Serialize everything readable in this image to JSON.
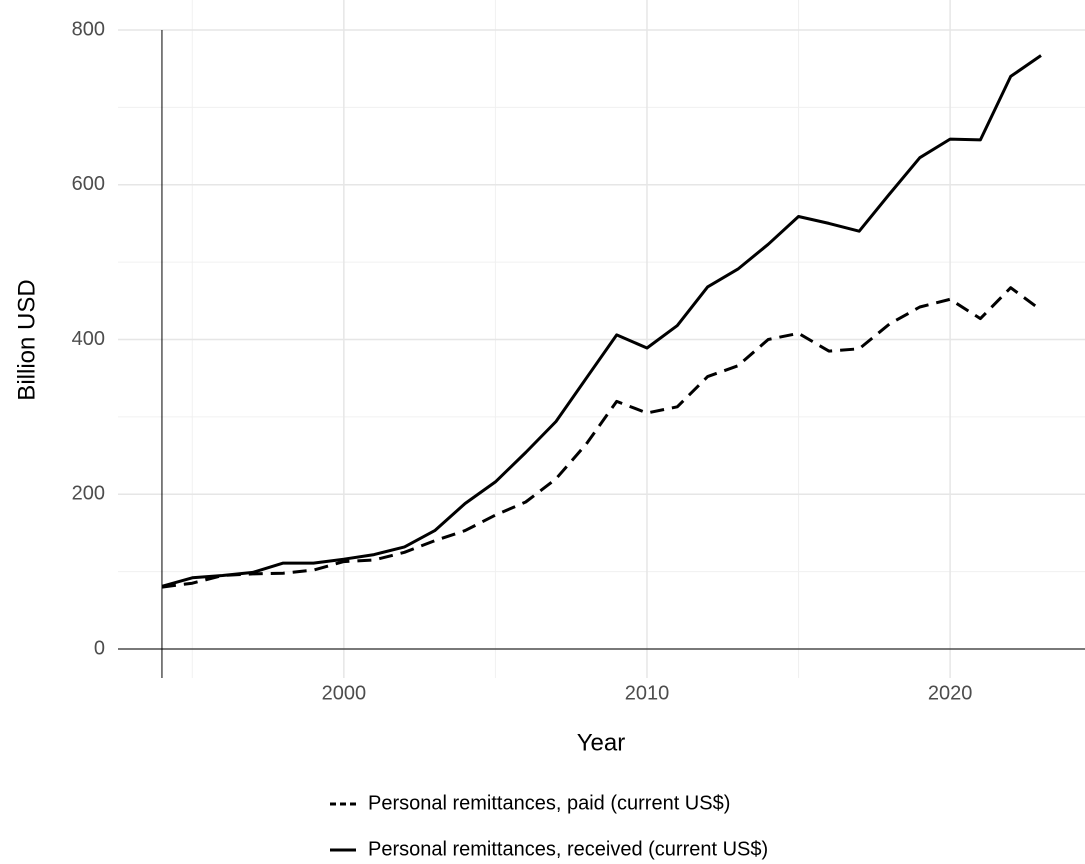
{
  "chart_data": {
    "type": "line",
    "x_label": "Year",
    "y_label": "Billion USD",
    "x": [
      1994,
      1995,
      1996,
      1997,
      1998,
      1999,
      2000,
      2001,
      2002,
      2003,
      2004,
      2005,
      2006,
      2007,
      2008,
      2009,
      2010,
      2011,
      2012,
      2013,
      2014,
      2015,
      2016,
      2017,
      2018,
      2019,
      2020,
      2021,
      2022,
      2023
    ],
    "series": [
      {
        "name": "Personal remittances, paid (current US$)",
        "color": "#000000",
        "dash": "dashed",
        "values": [
          80,
          85,
          95,
          97,
          98,
          102,
          113,
          115,
          125,
          140,
          153,
          173,
          190,
          220,
          265,
          320,
          305,
          313,
          352,
          366,
          400,
          408,
          385,
          388,
          420,
          442,
          452,
          427,
          467,
          438
        ]
      },
      {
        "name": "Personal remittances, received (current US$)",
        "color": "#000000",
        "dash": "solid",
        "values": [
          81,
          92,
          95,
          99,
          111,
          111,
          116,
          122,
          132,
          153,
          188,
          216,
          254,
          294,
          350,
          406,
          389,
          418,
          468,
          491,
          523,
          559,
          550,
          540,
          588,
          635,
          659,
          658,
          740,
          767
        ]
      }
    ],
    "xlim": [
      1992.55,
      2024.45
    ],
    "xticks": [
      2000,
      2010,
      2020
    ],
    "ylim": [
      0,
      800
    ],
    "yticks": [
      0,
      200,
      400,
      600,
      800
    ],
    "grid": true,
    "legend": "bottom"
  }
}
